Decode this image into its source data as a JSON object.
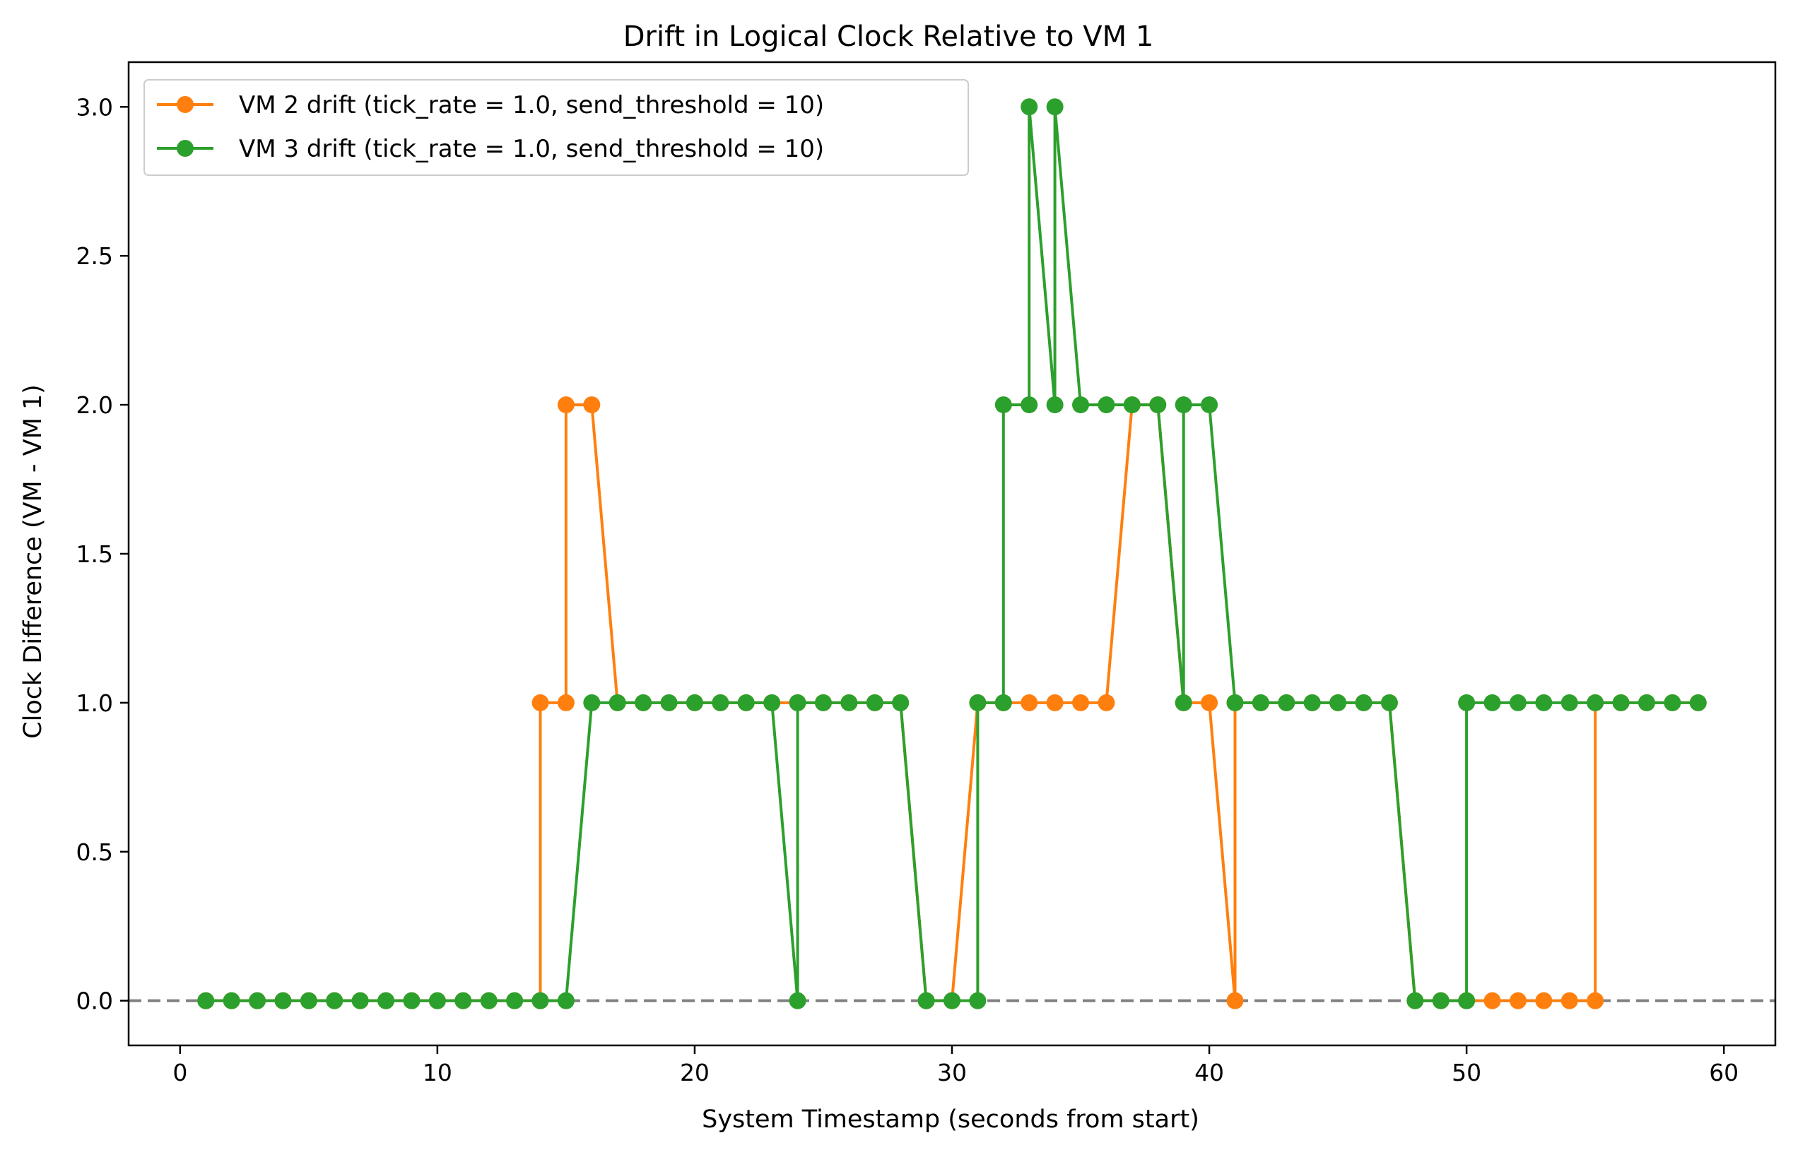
{
  "chart_data": {
    "type": "line",
    "title": "Drift in Logical Clock Relative to VM 1",
    "xlabel": "System Timestamp (seconds from start)",
    "ylabel": "Clock Difference (VM - VM 1)",
    "xlim": [
      -2,
      62
    ],
    "ylim": [
      -0.15,
      3.15
    ],
    "xticks": [
      0,
      10,
      20,
      30,
      40,
      50,
      60
    ],
    "xtick_labels": [
      "0",
      "10",
      "20",
      "30",
      "40",
      "50",
      "60"
    ],
    "yticks": [
      0.0,
      0.5,
      1.0,
      1.5,
      2.0,
      2.5,
      3.0
    ],
    "ytick_labels": [
      "0.0",
      "0.5",
      "1.0",
      "1.5",
      "2.0",
      "2.5",
      "3.0"
    ],
    "grid": false,
    "legend_position": "top-left",
    "reference_line": {
      "y": 0,
      "style": "dashed",
      "color": "#808080"
    },
    "series": [
      {
        "name": "VM 2 drift (tick_rate = 1.0, send_threshold = 10)",
        "color": "#ff7f0e",
        "points": [
          [
            1,
            0
          ],
          [
            2,
            0
          ],
          [
            3,
            0
          ],
          [
            4,
            0
          ],
          [
            5,
            0
          ],
          [
            6,
            0
          ],
          [
            7,
            0
          ],
          [
            8,
            0
          ],
          [
            9,
            0
          ],
          [
            10,
            0
          ],
          [
            11,
            0
          ],
          [
            12,
            0
          ],
          [
            13,
            0
          ],
          [
            14,
            0
          ],
          [
            14,
            1
          ],
          [
            15,
            1
          ],
          [
            15,
            2
          ],
          [
            16,
            2
          ],
          [
            17,
            1
          ],
          [
            18,
            1
          ],
          [
            19,
            1
          ],
          [
            20,
            1
          ],
          [
            21,
            1
          ],
          [
            22,
            1
          ],
          [
            23,
            1
          ],
          [
            24,
            1
          ],
          [
            25,
            1
          ],
          [
            26,
            1
          ],
          [
            27,
            1
          ],
          [
            28,
            1
          ],
          [
            29,
            0
          ],
          [
            30,
            0
          ],
          [
            31,
            1
          ],
          [
            32,
            1
          ],
          [
            33,
            1
          ],
          [
            34,
            1
          ],
          [
            35,
            1
          ],
          [
            36,
            1
          ],
          [
            37,
            2
          ],
          [
            38,
            2
          ],
          [
            39,
            1
          ],
          [
            40,
            1
          ],
          [
            41,
            0
          ],
          [
            41,
            1
          ],
          [
            42,
            1
          ],
          [
            43,
            1
          ],
          [
            44,
            1
          ],
          [
            45,
            1
          ],
          [
            46,
            1
          ],
          [
            47,
            1
          ],
          [
            48,
            0
          ],
          [
            49,
            0
          ],
          [
            50,
            0
          ],
          [
            51,
            0
          ],
          [
            52,
            0
          ],
          [
            53,
            0
          ],
          [
            54,
            0
          ],
          [
            55,
            0
          ],
          [
            55,
            1
          ],
          [
            56,
            1
          ],
          [
            57,
            1
          ],
          [
            58,
            1
          ],
          [
            59,
            1
          ]
        ]
      },
      {
        "name": "VM 3 drift (tick_rate = 1.0, send_threshold = 10)",
        "color": "#2ca02c",
        "points": [
          [
            1,
            0
          ],
          [
            2,
            0
          ],
          [
            3,
            0
          ],
          [
            4,
            0
          ],
          [
            5,
            0
          ],
          [
            6,
            0
          ],
          [
            7,
            0
          ],
          [
            8,
            0
          ],
          [
            9,
            0
          ],
          [
            10,
            0
          ],
          [
            11,
            0
          ],
          [
            12,
            0
          ],
          [
            13,
            0
          ],
          [
            14,
            0
          ],
          [
            15,
            0
          ],
          [
            16,
            1
          ],
          [
            17,
            1
          ],
          [
            18,
            1
          ],
          [
            19,
            1
          ],
          [
            20,
            1
          ],
          [
            21,
            1
          ],
          [
            22,
            1
          ],
          [
            23,
            1
          ],
          [
            24,
            0
          ],
          [
            24,
            1
          ],
          [
            25,
            1
          ],
          [
            26,
            1
          ],
          [
            27,
            1
          ],
          [
            28,
            1
          ],
          [
            29,
            0
          ],
          [
            30,
            0
          ],
          [
            31,
            0
          ],
          [
            31,
            1
          ],
          [
            32,
            1
          ],
          [
            32,
            2
          ],
          [
            33,
            2
          ],
          [
            33,
            3
          ],
          [
            34,
            2
          ],
          [
            34,
            3
          ],
          [
            35,
            2
          ],
          [
            36,
            2
          ],
          [
            37,
            2
          ],
          [
            38,
            2
          ],
          [
            39,
            1
          ],
          [
            39,
            2
          ],
          [
            40,
            2
          ],
          [
            41,
            1
          ],
          [
            42,
            1
          ],
          [
            43,
            1
          ],
          [
            44,
            1
          ],
          [
            45,
            1
          ],
          [
            46,
            1
          ],
          [
            47,
            1
          ],
          [
            48,
            0
          ],
          [
            49,
            0
          ],
          [
            50,
            0
          ],
          [
            50,
            1
          ],
          [
            51,
            1
          ],
          [
            52,
            1
          ],
          [
            53,
            1
          ],
          [
            54,
            1
          ],
          [
            55,
            1
          ],
          [
            56,
            1
          ],
          [
            57,
            1
          ],
          [
            58,
            1
          ],
          [
            59,
            1
          ]
        ]
      }
    ]
  }
}
